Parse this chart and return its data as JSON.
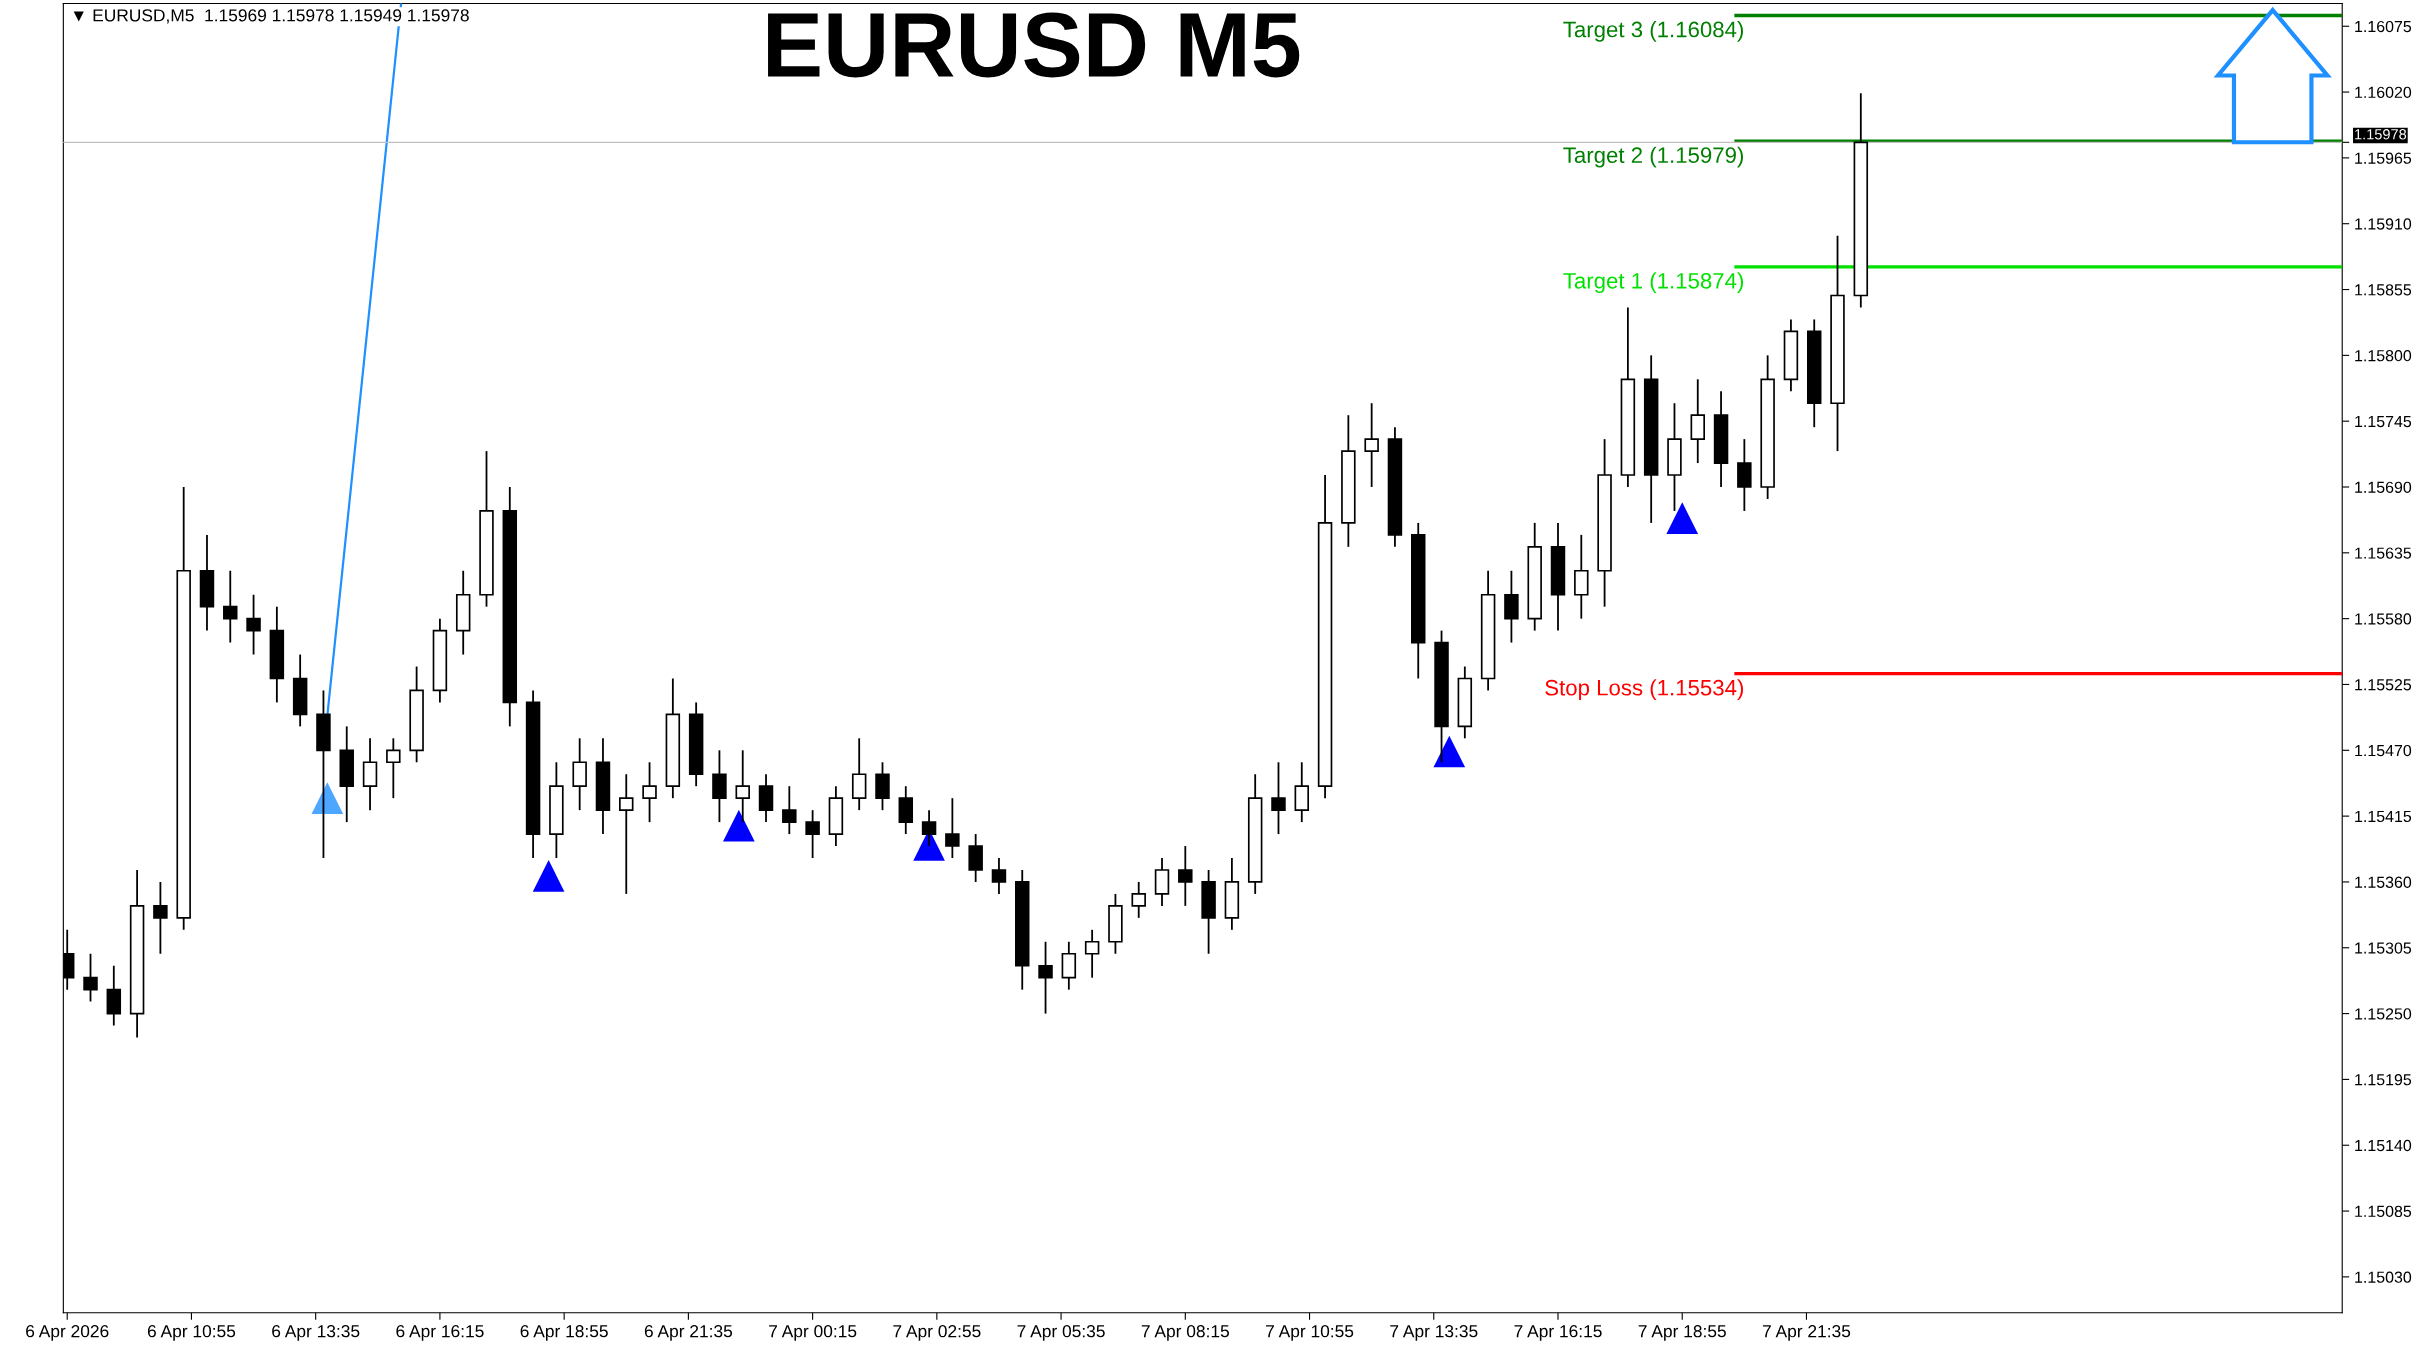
{
  "chart_data": {
    "type": "candlestick",
    "title": "EURUSD M5",
    "annotations": [
      "▼ EURUSD,M5  1.15969 1.15978 1.15949 1.15978"
    ],
    "xlim": [
      "2026-04-06T08:10",
      "2026-04-08T09:05"
    ],
    "xticks": [
      {
        "value": "2026-04-06T08:15",
        "label": "6 Apr 2026"
      },
      {
        "value": "2026-04-06T10:55",
        "label": "6 Apr 10:55"
      },
      {
        "value": "2026-04-06T13:35",
        "label": "6 Apr 13:35"
      },
      {
        "value": "2026-04-06T16:15",
        "label": "6 Apr 16:15"
      },
      {
        "value": "2026-04-06T18:55",
        "label": "6 Apr 18:55"
      },
      {
        "value": "2026-04-06T21:35",
        "label": "6 Apr 21:35"
      },
      {
        "value": "2026-04-07T00:15",
        "label": "7 Apr 00:15"
      },
      {
        "value": "2026-04-07T02:55",
        "label": "7 Apr 02:55"
      },
      {
        "value": "2026-04-07T05:35",
        "label": "7 Apr 05:35"
      },
      {
        "value": "2026-04-07T08:15",
        "label": "7 Apr 08:15"
      },
      {
        "value": "2026-04-07T10:55",
        "label": "7 Apr 10:55"
      },
      {
        "value": "2026-04-07T13:35",
        "label": "7 Apr 13:35"
      },
      {
        "value": "2026-04-07T16:15",
        "label": "7 Apr 16:15"
      },
      {
        "value": "2026-04-07T18:55",
        "label": "7 Apr 18:55"
      },
      {
        "value": "2026-04-07T21:35",
        "label": "7 Apr 21:35"
      }
    ],
    "ylim": [
      1.15,
      1.16094
    ],
    "yticks": [
      {
        "value": 1.1503,
        "label": "1.15030"
      },
      {
        "value": 1.15085,
        "label": "1.15085"
      },
      {
        "value": 1.1514,
        "label": "1.15140"
      },
      {
        "value": 1.15195,
        "label": "1.15195"
      },
      {
        "value": 1.1525,
        "label": "1.15250"
      },
      {
        "value": 1.15305,
        "label": "1.15305"
      },
      {
        "value": 1.1536,
        "label": "1.15360"
      },
      {
        "value": 1.15415,
        "label": "1.15415"
      },
      {
        "value": 1.1547,
        "label": "1.15470"
      },
      {
        "value": 1.15525,
        "label": "1.15525"
      },
      {
        "value": 1.1558,
        "label": "1.15580"
      },
      {
        "value": 1.15635,
        "label": "1.15635"
      },
      {
        "value": 1.1569,
        "label": "1.15690"
      },
      {
        "value": 1.15745,
        "label": "1.15745"
      },
      {
        "value": 1.158,
        "label": "1.15800"
      },
      {
        "value": 1.15855,
        "label": "1.15855"
      },
      {
        "value": 1.1591,
        "label": "1.15910"
      },
      {
        "value": 1.15965,
        "label": "1.15965"
      },
      {
        "value": 1.1602,
        "label": "1.16020"
      },
      {
        "value": 1.16075,
        "label": "1.16075"
      },
      {
        "value": 1.15978,
        "label": "1.15978"
      }
    ],
    "ref_lines": [
      {
        "axis": "y",
        "value": 1.16084,
        "label": "Target 3 (1.16084)",
        "color": "#008000"
      },
      {
        "axis": "y",
        "value": 1.15979,
        "label": "Target 2 (1.15979)",
        "color": "#008000"
      },
      {
        "axis": "y",
        "value": 1.15978,
        "label": null,
        "color": "#c0c0c0"
      },
      {
        "axis": "y",
        "value": 1.15874,
        "label": "Target 1 (1.15874)",
        "color": "#00e000"
      },
      {
        "axis": "y",
        "value": 1.15534,
        "label": "Stop Loss (1.15534)",
        "color": "#ff0000"
      }
    ],
    "grid": false,
    "legend": false,
    "color": "#000000",
    "x": [
      "2026-04-06T08:15",
      "2026-04-06T08:45",
      "2026-04-06T09:15",
      "2026-04-06T09:45",
      "2026-04-06T10:15",
      "2026-04-06T10:45",
      "2026-04-06T11:15",
      "2026-04-06T11:45",
      "2026-04-06T12:15",
      "2026-04-06T12:45",
      "2026-04-06T13:15",
      "2026-04-06T13:45",
      "2026-04-06T14:15",
      "2026-04-06T14:45",
      "2026-04-06T15:15",
      "2026-04-06T15:45",
      "2026-04-06T16:15",
      "2026-04-06T16:45",
      "2026-04-06T17:15",
      "2026-04-06T17:45",
      "2026-04-06T18:15",
      "2026-04-06T18:45",
      "2026-04-06T19:15",
      "2026-04-06T19:45",
      "2026-04-06T20:15",
      "2026-04-06T20:45",
      "2026-04-06T21:15",
      "2026-04-06T21:45",
      "2026-04-06T22:15",
      "2026-04-06T22:45",
      "2026-04-06T23:15",
      "2026-04-06T23:45",
      "2026-04-07T00:15",
      "2026-04-07T00:45",
      "2026-04-07T01:15",
      "2026-04-07T01:45",
      "2026-04-07T02:15",
      "2026-04-07T02:45",
      "2026-04-07T03:15",
      "2026-04-07T03:45",
      "2026-04-07T04:15",
      "2026-04-07T04:45",
      "2026-04-07T05:15",
      "2026-04-07T05:45",
      "2026-04-07T06:15",
      "2026-04-07T06:45",
      "2026-04-07T07:15",
      "2026-04-07T07:45",
      "2026-04-07T08:15",
      "2026-04-07T08:45",
      "2026-04-07T09:15",
      "2026-04-07T09:45",
      "2026-04-07T10:15",
      "2026-04-07T10:45",
      "2026-04-07T11:15",
      "2026-04-07T11:45",
      "2026-04-07T12:15",
      "2026-04-07T12:45",
      "2026-04-07T13:15",
      "2026-04-07T13:45",
      "2026-04-07T14:15",
      "2026-04-07T14:45",
      "2026-04-07T15:15",
      "2026-04-07T15:45",
      "2026-04-07T16:15",
      "2026-04-07T16:45",
      "2026-04-07T17:15",
      "2026-04-07T17:45",
      "2026-04-07T18:15",
      "2026-04-07T18:45",
      "2026-04-07T19:15",
      "2026-04-07T19:45",
      "2026-04-07T20:15",
      "2026-04-07T20:45",
      "2026-04-07T21:15",
      "2026-04-07T21:45",
      "2026-04-07T22:15",
      "2026-04-07T22:45"
    ],
    "ohlc": [
      [
        1.153,
        1.1532,
        1.1527,
        1.1528
      ],
      [
        1.1528,
        1.153,
        1.1526,
        1.1527
      ],
      [
        1.1527,
        1.1529,
        1.1524,
        1.1525
      ],
      [
        1.1525,
        1.1537,
        1.1523,
        1.1534
      ],
      [
        1.1534,
        1.1536,
        1.153,
        1.1533
      ],
      [
        1.1533,
        1.1569,
        1.1532,
        1.1562
      ],
      [
        1.1562,
        1.1565,
        1.1557,
        1.1559
      ],
      [
        1.1559,
        1.1562,
        1.1556,
        1.1558
      ],
      [
        1.1558,
        1.156,
        1.1555,
        1.1557
      ],
      [
        1.1557,
        1.1559,
        1.1551,
        1.1553
      ],
      [
        1.1553,
        1.1555,
        1.1549,
        1.155
      ],
      [
        1.155,
        1.1552,
        1.1538,
        1.1547
      ],
      [
        1.1547,
        1.1549,
        1.1541,
        1.1544
      ],
      [
        1.1544,
        1.1548,
        1.1542,
        1.1546
      ],
      [
        1.1546,
        1.1548,
        1.1543,
        1.1547
      ],
      [
        1.1547,
        1.1554,
        1.1546,
        1.1552
      ],
      [
        1.1552,
        1.1558,
        1.1551,
        1.1557
      ],
      [
        1.1557,
        1.1562,
        1.1555,
        1.156
      ],
      [
        1.156,
        1.1572,
        1.1559,
        1.1567
      ],
      [
        1.1567,
        1.1569,
        1.1549,
        1.1551
      ],
      [
        1.1551,
        1.1552,
        1.1538,
        1.154
      ],
      [
        1.154,
        1.1546,
        1.1538,
        1.1544
      ],
      [
        1.1544,
        1.1548,
        1.1542,
        1.1546
      ],
      [
        1.1546,
        1.1548,
        1.154,
        1.1542
      ],
      [
        1.1542,
        1.1545,
        1.1535,
        1.1543
      ],
      [
        1.1543,
        1.1546,
        1.1541,
        1.1544
      ],
      [
        1.1544,
        1.1553,
        1.1543,
        1.155
      ],
      [
        1.155,
        1.1551,
        1.1544,
        1.1545
      ],
      [
        1.1545,
        1.1547,
        1.1541,
        1.1543
      ],
      [
        1.1543,
        1.1547,
        1.1541,
        1.1544
      ],
      [
        1.1544,
        1.1545,
        1.1541,
        1.1542
      ],
      [
        1.1542,
        1.1544,
        1.154,
        1.1541
      ],
      [
        1.1541,
        1.1542,
        1.1538,
        1.154
      ],
      [
        1.154,
        1.1544,
        1.1539,
        1.1543
      ],
      [
        1.1543,
        1.1548,
        1.1542,
        1.1545
      ],
      [
        1.1545,
        1.1546,
        1.1542,
        1.1543
      ],
      [
        1.1543,
        1.1544,
        1.154,
        1.1541
      ],
      [
        1.1541,
        1.1542,
        1.1539,
        1.154
      ],
      [
        1.154,
        1.1543,
        1.1538,
        1.1539
      ],
      [
        1.1539,
        1.154,
        1.1536,
        1.1537
      ],
      [
        1.1537,
        1.1538,
        1.1535,
        1.1536
      ],
      [
        1.1536,
        1.1537,
        1.1527,
        1.1529
      ],
      [
        1.1529,
        1.1531,
        1.1525,
        1.1528
      ],
      [
        1.1528,
        1.1531,
        1.1527,
        1.153
      ],
      [
        1.153,
        1.1532,
        1.1528,
        1.1531
      ],
      [
        1.1531,
        1.1535,
        1.153,
        1.1534
      ],
      [
        1.1534,
        1.1536,
        1.1533,
        1.1535
      ],
      [
        1.1535,
        1.1538,
        1.1534,
        1.1537
      ],
      [
        1.1537,
        1.1539,
        1.1534,
        1.1536
      ],
      [
        1.1536,
        1.1537,
        1.153,
        1.1533
      ],
      [
        1.1533,
        1.1538,
        1.1532,
        1.1536
      ],
      [
        1.1536,
        1.1545,
        1.1535,
        1.1543
      ],
      [
        1.1543,
        1.1546,
        1.154,
        1.1542
      ],
      [
        1.1542,
        1.1546,
        1.1541,
        1.1544
      ],
      [
        1.1544,
        1.157,
        1.1543,
        1.1566
      ],
      [
        1.1566,
        1.1575,
        1.1564,
        1.1572
      ],
      [
        1.1572,
        1.1576,
        1.1569,
        1.1573
      ],
      [
        1.1573,
        1.1574,
        1.1564,
        1.1565
      ],
      [
        1.1565,
        1.1566,
        1.1553,
        1.1556
      ],
      [
        1.1556,
        1.1557,
        1.1546,
        1.1549
      ],
      [
        1.1549,
        1.1554,
        1.1548,
        1.1553
      ],
      [
        1.1553,
        1.1562,
        1.1552,
        1.156
      ],
      [
        1.156,
        1.1562,
        1.1556,
        1.1558
      ],
      [
        1.1558,
        1.1566,
        1.1557,
        1.1564
      ],
      [
        1.1564,
        1.1566,
        1.1557,
        1.156
      ],
      [
        1.156,
        1.1565,
        1.1558,
        1.1562
      ],
      [
        1.1562,
        1.1573,
        1.1559,
        1.157
      ],
      [
        1.157,
        1.1584,
        1.1569,
        1.1578
      ],
      [
        1.1578,
        1.158,
        1.1566,
        1.157
      ],
      [
        1.157,
        1.1576,
        1.1567,
        1.1573
      ],
      [
        1.1573,
        1.1578,
        1.1571,
        1.1575
      ],
      [
        1.1575,
        1.1577,
        1.1569,
        1.1571
      ],
      [
        1.1571,
        1.1573,
        1.1567,
        1.1569
      ],
      [
        1.1569,
        1.158,
        1.1568,
        1.1578
      ],
      [
        1.1578,
        1.1583,
        1.1577,
        1.1582
      ],
      [
        1.1582,
        1.1583,
        1.1574,
        1.1576
      ],
      [
        1.1576,
        1.159,
        1.1572,
        1.1585
      ],
      [
        1.1585,
        1.16019,
        1.1584,
        1.15978
      ]
    ],
    "series": [
      {
        "type": "line",
        "color": "#1e90ff",
        "x": [
          "2026-04-06T13:50",
          "2026-04-06T15:25"
        ],
        "values": [
          1.15499,
          1.16094
        ]
      },
      {
        "type": "scatter",
        "color": "#0000ff",
        "marker": "triangle",
        "x": [
          "2026-04-06T18:35",
          "2026-04-06T22:40",
          "2026-04-07T02:45",
          "2026-04-07T13:55",
          "2026-04-07T18:55"
        ],
        "values": [
          1.15365,
          1.15407,
          1.15391,
          1.15469,
          1.15664
        ]
      },
      {
        "type": "scatter",
        "color": "#4da6ff",
        "marker": "triangle",
        "x": [
          "2026-04-06T13:50"
        ],
        "values": [
          1.1543
        ]
      }
    ]
  }
}
